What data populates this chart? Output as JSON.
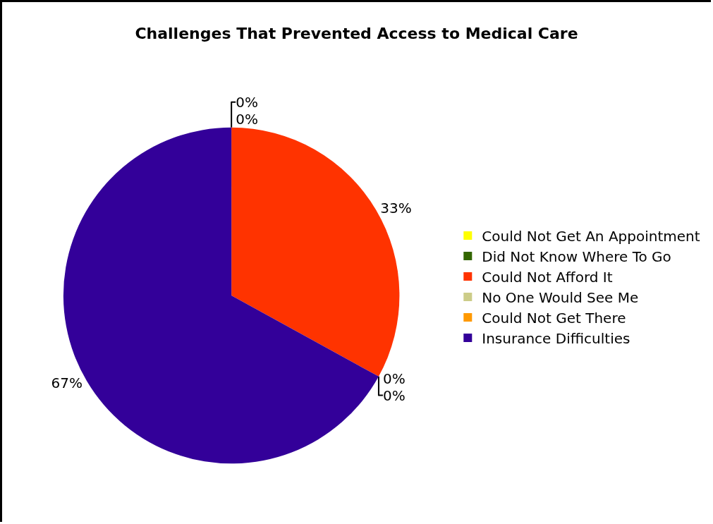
{
  "chart_data": {
    "type": "pie",
    "title": "Challenges That Prevented Access to Medical Care",
    "categories": [
      "Could Not Get An Appointment",
      "Did Not Know Where To Go",
      "Could Not Afford It",
      "No One Would See Me",
      "Could Not Get There",
      "Insurance Difficulties"
    ],
    "values": [
      0,
      0,
      33,
      0,
      0,
      67
    ],
    "value_labels": [
      "0%",
      "0%",
      "33%",
      "0%",
      "0%",
      "67%"
    ],
    "colors": [
      "#ffff00",
      "#336600",
      "#ff3300",
      "#cccc88",
      "#ff9900",
      "#330099"
    ],
    "legend": "right"
  }
}
